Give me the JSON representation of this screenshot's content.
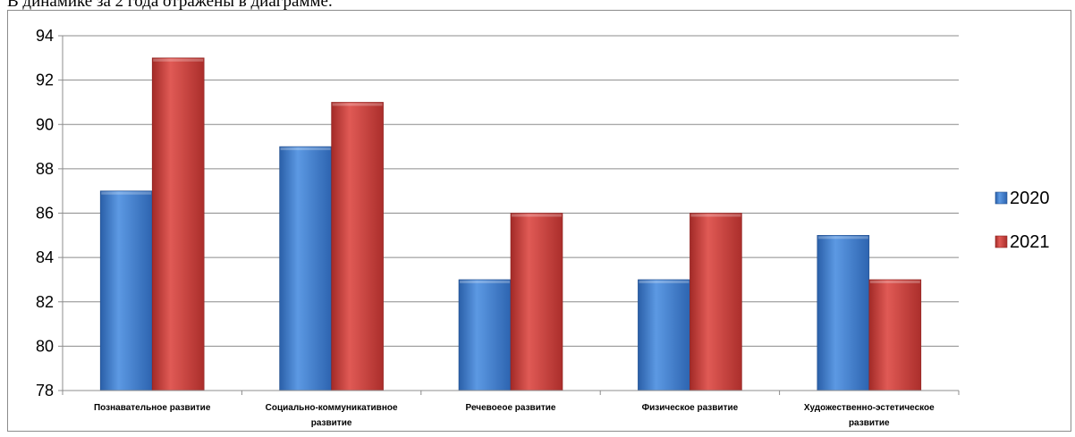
{
  "page": {
    "intro_text": "В динамике за 2 года отражены в диаграмме."
  },
  "chart_data": {
    "type": "bar",
    "title": "",
    "xlabel": "",
    "ylabel": "",
    "categories": [
      [
        "Познавательное развитие"
      ],
      [
        "Социально-коммуникативное",
        "развитие"
      ],
      [
        "Речевоеое развитие"
      ],
      [
        "Физическое развитие"
      ],
      [
        "Художественно-эстетическое",
        "развитие"
      ]
    ],
    "series": [
      {
        "name": "2020",
        "values": [
          87,
          89,
          83,
          83,
          85
        ],
        "color": "#3a78c9"
      },
      {
        "name": "2021",
        "values": [
          93,
          91,
          86,
          86,
          83
        ],
        "color": "#c83a37"
      }
    ],
    "ylim": [
      78,
      94
    ],
    "yticks": [
      78,
      80,
      82,
      84,
      86,
      88,
      90,
      92,
      94
    ],
    "grid": true,
    "legend": "right"
  }
}
